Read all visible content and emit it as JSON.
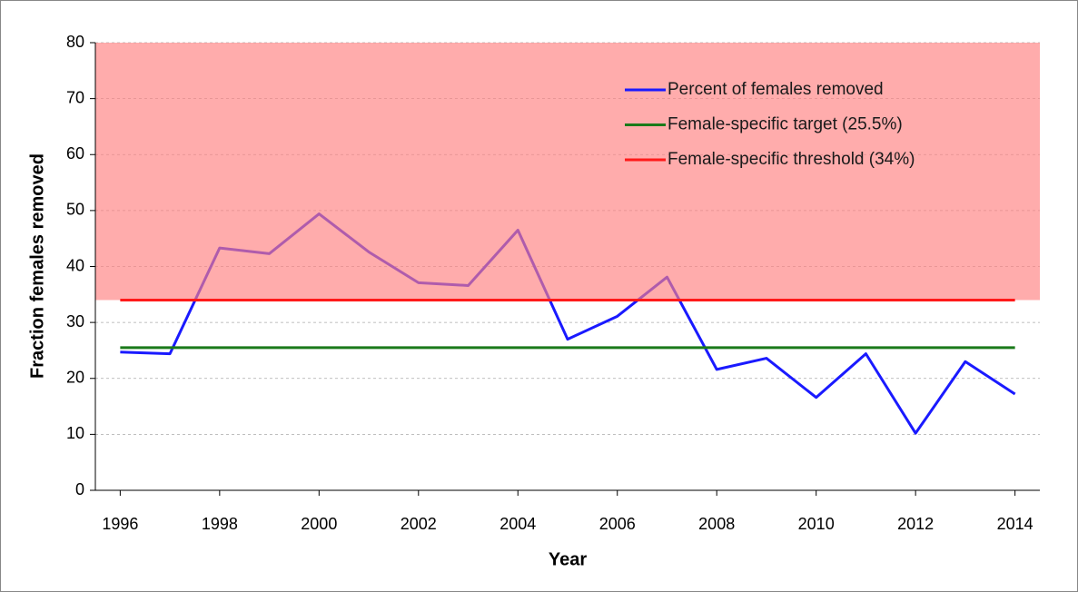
{
  "chart_data": {
    "type": "line",
    "y_label": "Fraction females removed",
    "x_label": "Year",
    "x": [
      1996,
      1997,
      1998,
      1999,
      2000,
      2001,
      2002,
      2003,
      2004,
      2005,
      2006,
      2007,
      2008,
      2009,
      2010,
      2011,
      2012,
      2013,
      2014
    ],
    "series": [
      {
        "name": "Percent of females removed",
        "color": "#1a1aff",
        "values": [
          24.7,
          24.4,
          43.3,
          42.3,
          49.4,
          42.6,
          37.1,
          36.6,
          46.5,
          27.0,
          31.1,
          38.1,
          21.6,
          23.6,
          16.6,
          24.4,
          10.2,
          23.0,
          17.2
        ]
      }
    ],
    "reference_lines": [
      {
        "name": "Female-specific target (25.5%)",
        "value": 25.5,
        "color": "#1a7a1a"
      },
      {
        "name": "Female-specific threshold (34%)",
        "value": 34,
        "color": "#ff1a1a",
        "shade_above": "#ff8080"
      }
    ],
    "xlim": [
      1995.5,
      2014.5
    ],
    "xticks": [
      1996,
      1998,
      2000,
      2002,
      2004,
      2006,
      2008,
      2010,
      2012,
      2014
    ],
    "ylim": [
      0,
      80
    ],
    "yticks": [
      0,
      10,
      20,
      30,
      40,
      50,
      60,
      70,
      80
    ],
    "grid": true,
    "legend": "upper right"
  }
}
